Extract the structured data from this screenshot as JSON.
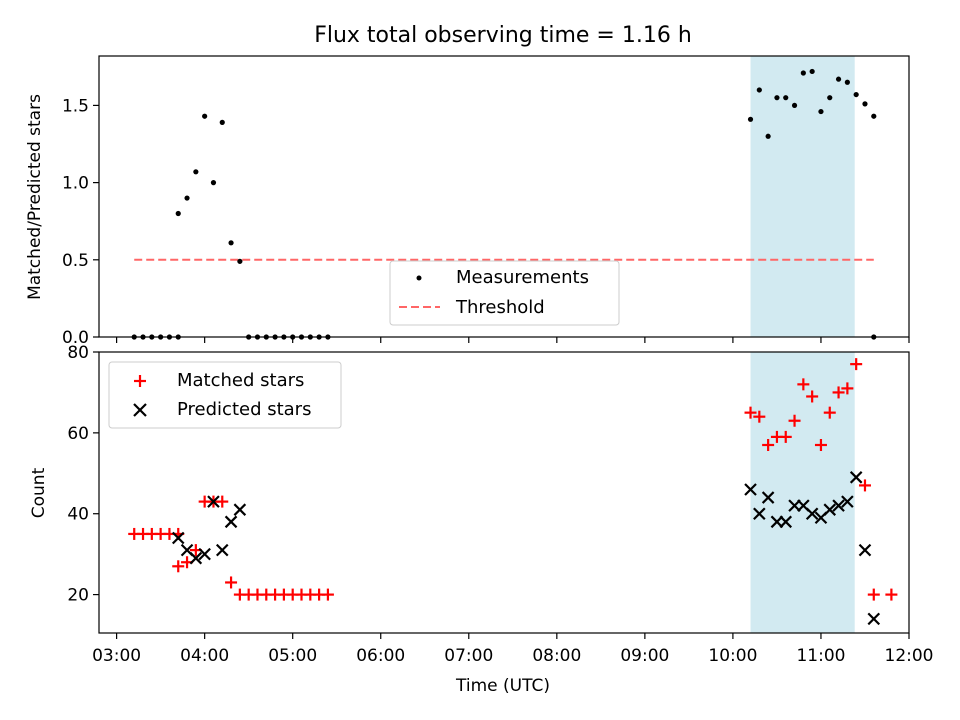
{
  "title": "Flux total observing time = 1.16 h",
  "chart_data": [
    {
      "type": "scatter",
      "panel": "top",
      "ylabel": "Matched/Predicted stars",
      "xlabel": "",
      "xlim": [
        "02:48",
        "12:00"
      ],
      "ylim": [
        0,
        1.82
      ],
      "yticks": [
        0.0,
        0.5,
        1.0,
        1.5
      ],
      "ytick_labels": [
        "0.0",
        "0.5",
        "1.0",
        "1.5"
      ],
      "grid": false,
      "legend_position": "lower-center",
      "highlight_span": {
        "x0": "10:12",
        "x1": "11:23",
        "color": "#add8e6"
      },
      "threshold": {
        "name": "Threshold",
        "y": 0.5,
        "x0": "03:12",
        "x1": "11:36",
        "color": "#ff6666"
      },
      "series": [
        {
          "name": "Measurements",
          "color": "#000000",
          "points": [
            [
              "03:12",
              0
            ],
            [
              "03:18",
              0
            ],
            [
              "03:24",
              0
            ],
            [
              "03:30",
              0
            ],
            [
              "03:36",
              0
            ],
            [
              "03:42",
              0
            ],
            [
              "03:42",
              0.8
            ],
            [
              "03:48",
              0.9
            ],
            [
              "03:54",
              1.07
            ],
            [
              "04:00",
              1.43
            ],
            [
              "04:06",
              1.0
            ],
            [
              "04:12",
              1.39
            ],
            [
              "04:18",
              0.61
            ],
            [
              "04:24",
              0.49
            ],
            [
              "04:30",
              0
            ],
            [
              "04:36",
              0
            ],
            [
              "04:42",
              0
            ],
            [
              "04:48",
              0
            ],
            [
              "04:54",
              0
            ],
            [
              "05:00",
              0
            ],
            [
              "05:06",
              0
            ],
            [
              "05:12",
              0
            ],
            [
              "05:18",
              0
            ],
            [
              "05:24",
              0
            ],
            [
              "10:12",
              1.41
            ],
            [
              "10:18",
              1.6
            ],
            [
              "10:24",
              1.3
            ],
            [
              "10:30",
              1.55
            ],
            [
              "10:36",
              1.55
            ],
            [
              "10:42",
              1.5
            ],
            [
              "10:48",
              1.71
            ],
            [
              "10:54",
              1.72
            ],
            [
              "11:00",
              1.46
            ],
            [
              "11:06",
              1.55
            ],
            [
              "11:12",
              1.67
            ],
            [
              "11:18",
              1.65
            ],
            [
              "11:24",
              1.57
            ],
            [
              "11:30",
              1.51
            ],
            [
              "11:36",
              1.43
            ],
            [
              "11:36",
              0
            ]
          ]
        }
      ]
    },
    {
      "type": "scatter",
      "panel": "bottom",
      "xlabel": "Time (UTC)",
      "ylabel": "Count",
      "xlim": [
        "02:48",
        "12:00"
      ],
      "xticks": [
        "03:00",
        "04:00",
        "05:00",
        "06:00",
        "07:00",
        "08:00",
        "09:00",
        "10:00",
        "11:00",
        "12:00"
      ],
      "ylim": [
        10.5,
        80
      ],
      "yticks": [
        20,
        40,
        60,
        80
      ],
      "ytick_labels": [
        "20",
        "40",
        "60",
        "80"
      ],
      "grid": false,
      "legend_position": "upper-left",
      "highlight_span": {
        "x0": "10:12",
        "x1": "11:23",
        "color": "#add8e6"
      },
      "series": [
        {
          "name": "Matched stars",
          "marker": "+",
          "color": "#ff0000",
          "points": [
            [
              "03:12",
              35
            ],
            [
              "03:18",
              35
            ],
            [
              "03:24",
              35
            ],
            [
              "03:30",
              35
            ],
            [
              "03:36",
              35
            ],
            [
              "03:42",
              35
            ],
            [
              "03:42",
              27
            ],
            [
              "03:48",
              28
            ],
            [
              "03:54",
              31
            ],
            [
              "04:00",
              43
            ],
            [
              "04:06",
              43
            ],
            [
              "04:12",
              43
            ],
            [
              "04:18",
              23
            ],
            [
              "04:24",
              20
            ],
            [
              "04:30",
              20
            ],
            [
              "04:36",
              20
            ],
            [
              "04:42",
              20
            ],
            [
              "04:48",
              20
            ],
            [
              "04:54",
              20
            ],
            [
              "05:00",
              20
            ],
            [
              "05:06",
              20
            ],
            [
              "05:12",
              20
            ],
            [
              "05:18",
              20
            ],
            [
              "05:24",
              20
            ],
            [
              "10:12",
              65
            ],
            [
              "10:18",
              64
            ],
            [
              "10:24",
              57
            ],
            [
              "10:30",
              59
            ],
            [
              "10:36",
              59
            ],
            [
              "10:42",
              63
            ],
            [
              "10:48",
              72
            ],
            [
              "10:54",
              69
            ],
            [
              "11:00",
              57
            ],
            [
              "11:06",
              65
            ],
            [
              "11:12",
              70
            ],
            [
              "11:18",
              71
            ],
            [
              "11:24",
              77
            ],
            [
              "11:30",
              47
            ],
            [
              "11:36",
              20
            ],
            [
              "11:48",
              20
            ]
          ]
        },
        {
          "name": "Predicted stars",
          "marker": "x",
          "color": "#000000",
          "points": [
            [
              "03:42",
              34
            ],
            [
              "03:48",
              31
            ],
            [
              "03:54",
              29
            ],
            [
              "04:00",
              30
            ],
            [
              "04:06",
              43
            ],
            [
              "04:12",
              31
            ],
            [
              "04:18",
              38
            ],
            [
              "04:24",
              41
            ],
            [
              "10:12",
              46
            ],
            [
              "10:18",
              40
            ],
            [
              "10:24",
              44
            ],
            [
              "10:30",
              38
            ],
            [
              "10:36",
              38
            ],
            [
              "10:42",
              42
            ],
            [
              "10:48",
              42
            ],
            [
              "10:54",
              40
            ],
            [
              "11:00",
              39
            ],
            [
              "11:06",
              41
            ],
            [
              "11:12",
              42
            ],
            [
              "11:18",
              43
            ],
            [
              "11:24",
              49
            ],
            [
              "11:30",
              31
            ],
            [
              "11:36",
              14
            ]
          ]
        }
      ]
    }
  ]
}
